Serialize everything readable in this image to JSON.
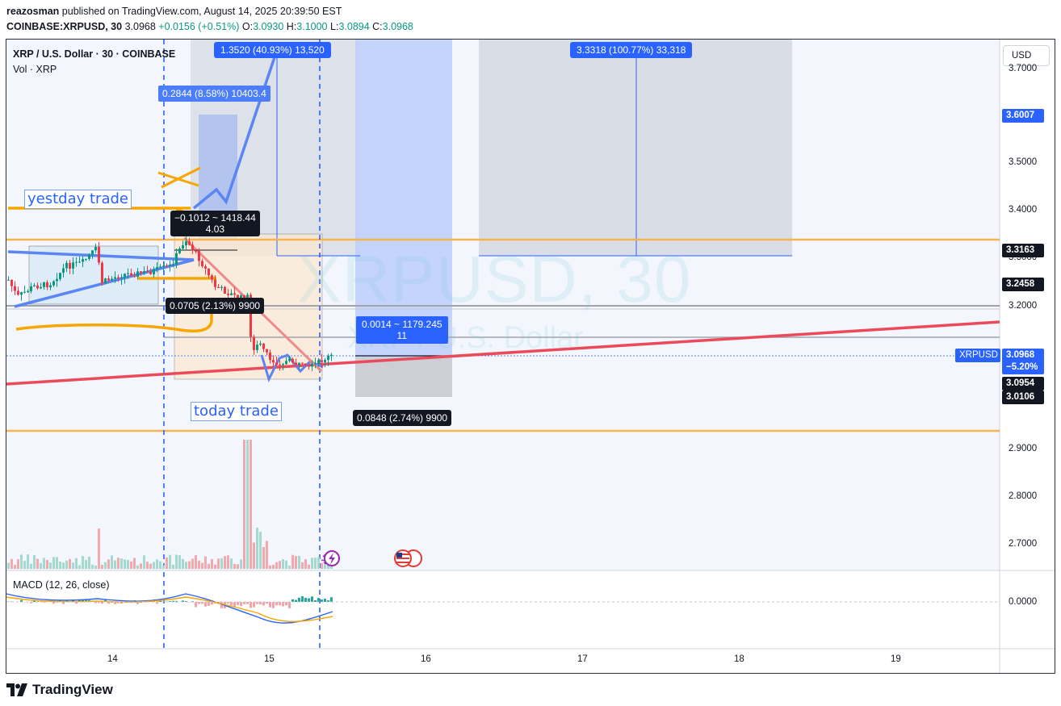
{
  "header": {
    "author": "reazosman",
    "published_text": " published on TradingView.com, August 14, 2025 20:39:50 EST",
    "symbol": "COINBASE:XRPUSD, 30",
    "last": "3.0968",
    "change": "+0.0156 (+0.51%)",
    "o_label": "O:",
    "o_val": "3.0930",
    "h_label": "H:",
    "h_val": "3.1000",
    "l_label": "L:",
    "l_val": "3.0894",
    "c_label": "C:",
    "c_val": "3.0968"
  },
  "legend": {
    "title": "XRP / U.S. Dollar · 30 · COINBASE",
    "vol": "Vol · XRP",
    "macd": "MACD (12, 26, close)"
  },
  "currency_button": "USD",
  "watermark": {
    "line1": "XRPUSD, 30",
    "line2": "XRP / U.S. Dollar"
  },
  "price_axis": {
    "labels": [
      {
        "text": "3.7000"
      },
      {
        "text": "3.5000"
      },
      {
        "text": "3.4000"
      },
      {
        "text": "3.3000"
      },
      {
        "text": "3.2000"
      },
      {
        "text": "2.9000"
      },
      {
        "text": "2.8000"
      },
      {
        "text": "2.7000"
      }
    ],
    "macd_zero": "0.0000"
  },
  "price_tags": [
    {
      "text": "3.6007",
      "color": "#2962ff"
    },
    {
      "text": "3.3163",
      "color": "#131722"
    },
    {
      "text": "3.2458",
      "color": "#131722"
    },
    {
      "text": "3.0968",
      "color": "#2962ff"
    },
    {
      "text": "−5.20%",
      "color": "#2962ff"
    },
    {
      "text": "3.0954",
      "color": "#131722"
    },
    {
      "text": "3.0106",
      "color": "#131722"
    }
  ],
  "symbol_tag": "XRPUSD",
  "time_axis": [
    "14",
    "15",
    "16",
    "17",
    "18",
    "19"
  ],
  "measure_boxes": {
    "m1": "1.3520 (40.93%) 13,520",
    "m2": "3.3318 (100.77%) 33,318",
    "m3": "0.2844 (8.58%) 10403.4",
    "m4_line1": "−0.1012 ~ 1418.44",
    "m4_line2": "4.03",
    "m5": "0.0705 (2.13%) 9900",
    "m6_line1": "0.0014 ~ 1179.245",
    "m6_line2": "11",
    "m7": "0.0848 (2.74%) 9900"
  },
  "annotations": {
    "yesterday": "yestday trade",
    "today": "today trade"
  },
  "brand": "TradingView",
  "colors": {
    "up": "#089981",
    "down": "#f23645",
    "accent": "#2962ff",
    "orange": "#f7a600"
  }
}
